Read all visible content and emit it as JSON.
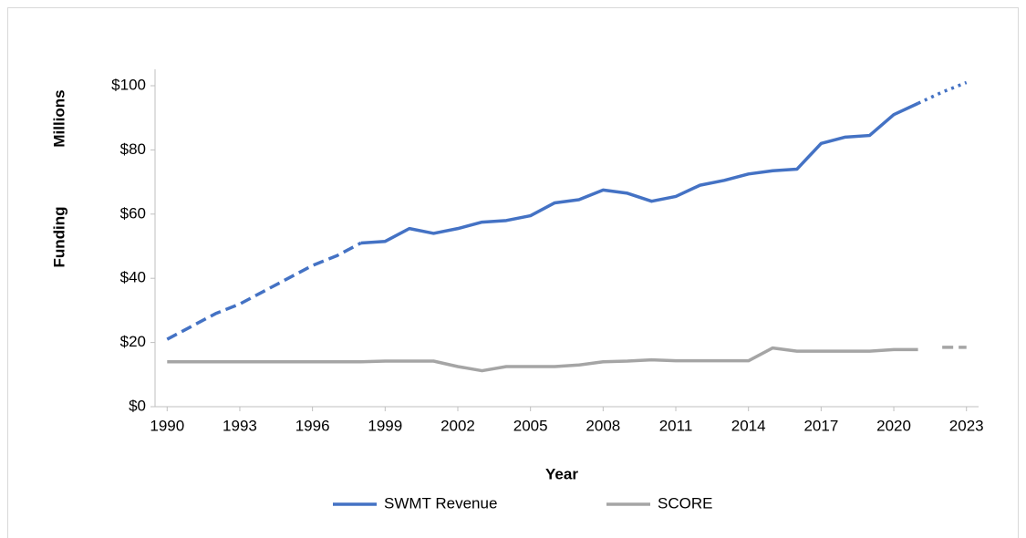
{
  "chart_data": {
    "type": "line",
    "ylabel": "Funding",
    "ylabel_unit": "Millions",
    "xlabel": "Year",
    "x": [
      1990,
      1991,
      1992,
      1993,
      1994,
      1995,
      1996,
      1997,
      1998,
      1999,
      2000,
      2001,
      2002,
      2003,
      2004,
      2005,
      2006,
      2007,
      2008,
      2009,
      2010,
      2011,
      2012,
      2013,
      2014,
      2015,
      2016,
      2017,
      2018,
      2019,
      2020,
      2021,
      2022,
      2023
    ],
    "series": [
      {
        "name": "SWMT Revenue",
        "color": "#4472c4",
        "values": [
          21,
          25,
          29,
          32,
          36,
          40,
          44,
          47,
          51,
          51.5,
          55.5,
          54,
          55.5,
          57.5,
          58,
          59.5,
          63.5,
          64.5,
          67.5,
          66.5,
          64,
          65.5,
          69,
          70.5,
          72.5,
          73.5,
          74,
          82,
          84,
          84.5,
          91,
          94.5,
          98,
          101
        ],
        "segments": [
          {
            "from": 1990,
            "to": 1998,
            "style": "dashed"
          },
          {
            "from": 1998,
            "to": 2021,
            "style": "solid"
          },
          {
            "from": 2021,
            "to": 2023,
            "style": "dotted"
          }
        ]
      },
      {
        "name": "SCORE",
        "color": "#a5a5a5",
        "values": [
          14,
          14,
          14,
          14,
          14,
          14,
          14,
          14,
          14,
          14.2,
          14.2,
          14.2,
          12.5,
          11.2,
          12.5,
          12.5,
          12.5,
          13,
          14,
          14.2,
          14.6,
          14.3,
          14.3,
          14.3,
          14.3,
          18.3,
          17.3,
          17.3,
          17.3,
          17.3,
          17.8,
          17.8,
          18.5,
          18.5
        ],
        "segments": [
          {
            "from": 1990,
            "to": 2021,
            "style": "solid"
          },
          {
            "from": 2022,
            "to": 2023,
            "style": "dashed"
          }
        ]
      }
    ],
    "xlim": [
      1989.5,
      2023.5
    ],
    "xticks": [
      1990,
      1993,
      1996,
      1999,
      2002,
      2005,
      2008,
      2011,
      2014,
      2017,
      2020,
      2023
    ],
    "ylim": [
      0,
      100
    ],
    "yticks": [
      {
        "value": 0,
        "label": "$0"
      },
      {
        "value": 20,
        "label": "$20"
      },
      {
        "value": 40,
        "label": "$40"
      },
      {
        "value": 60,
        "label": "$60"
      },
      {
        "value": 80,
        "label": "$80"
      },
      {
        "value": 100,
        "label": "$100"
      }
    ],
    "grid": false,
    "legend": "bottom"
  }
}
